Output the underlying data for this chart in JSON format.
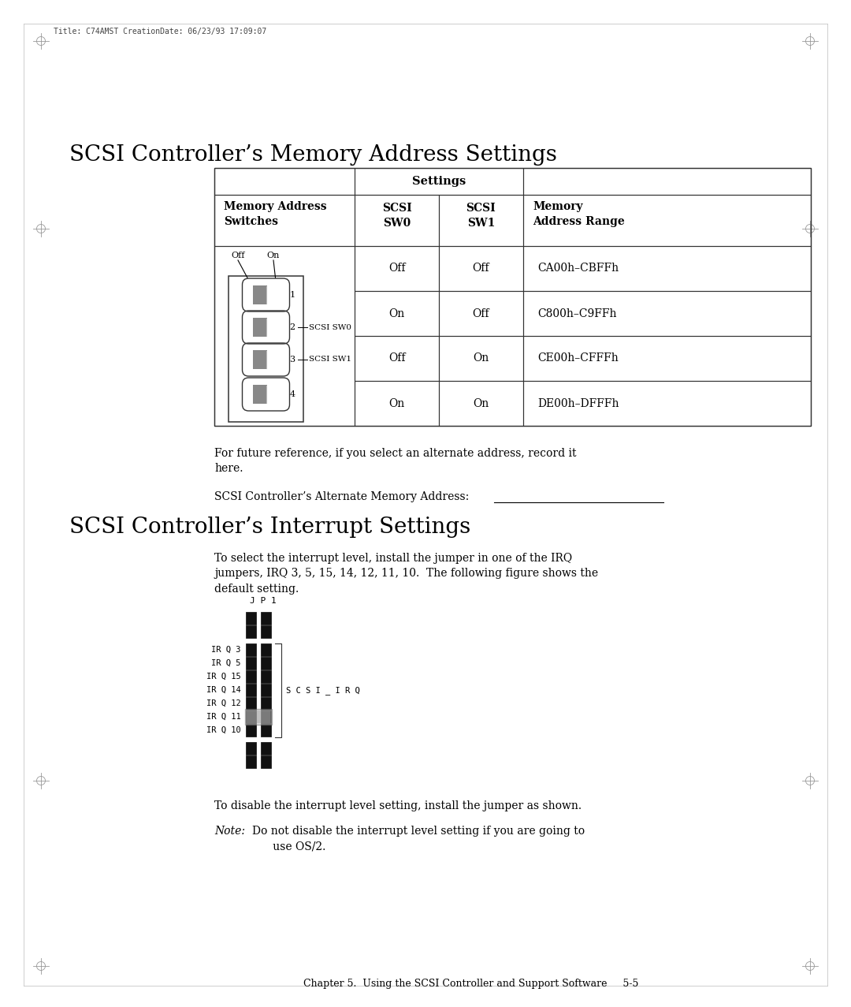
{
  "page_title_memory": "SCSI Controller’s Memory Address Settings",
  "page_title_interrupt": "SCSI Controller’s Interrupt Settings",
  "header_meta": "Title: C74AMST CreationDate: 06/23/93 17:09:07",
  "table_data": [
    [
      "Off",
      "Off",
      "CA00h–CBFFh"
    ],
    [
      "On",
      "Off",
      "C800h–C9FFh"
    ],
    [
      "Off",
      "On",
      "CE00h–CFFFh"
    ],
    [
      "On",
      "On",
      "DE00h–DFFFh"
    ]
  ],
  "para1": "For future reference, if you select an alternate address, record it\nhere.",
  "para2": "SCSI Controller’s Alternate Memory Address:                 ",
  "interrupt_body1": "To select the interrupt level, install the jumper in one of the IRQ\njumpers, IRQ 3, 5, 15, 14, 12, 11, 10.  The following figure shows the\ndefault setting.",
  "irq_labels": [
    "IR Q 3",
    "IR Q 5",
    "IR Q 15",
    "IR Q 14",
    "IR Q 12",
    "IR Q 11",
    "IR Q 10"
  ],
  "jp1_label": "J P 1",
  "scsi_irq_label": "S C S I _ I R Q",
  "para3": "To disable the interrupt level setting, install the jumper as shown.",
  "note_label": "Note:",
  "note_body": "Do not disable the interrupt level setting if you are going to\nuse OS/2.",
  "footer": "Chapter 5.  Using the SCSI Controller and Support Software     5-5",
  "bg_color": "#ffffff",
  "text_color": "#000000"
}
